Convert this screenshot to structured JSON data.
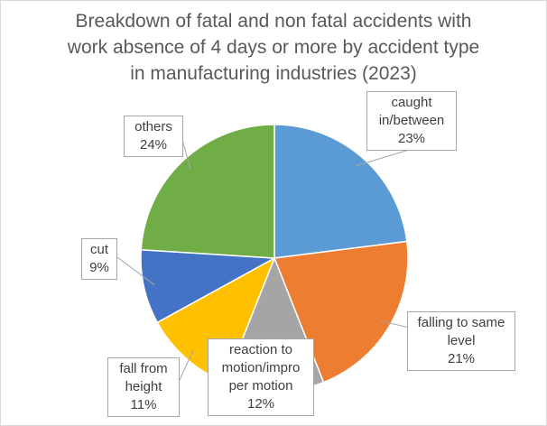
{
  "chart_data": {
    "type": "pie",
    "title_lines": [
      "Breakdown of fatal and non fatal accidents with",
      "work absence of 4 days or more by accident type",
      "in manufacturing industries (2023)"
    ],
    "slices": [
      {
        "label_lines": [
          "caught",
          "in/between"
        ],
        "value": 23,
        "value_label": "23%",
        "color": "#5b9bd5"
      },
      {
        "label_lines": [
          "falling to same",
          "level"
        ],
        "value": 21,
        "value_label": "21%",
        "color": "#ed7d31"
      },
      {
        "label_lines": [
          "reaction to",
          "motion/impro",
          "per motion"
        ],
        "value": 12,
        "value_label": "12%",
        "color": "#a5a5a5"
      },
      {
        "label_lines": [
          "fall from",
          "height"
        ],
        "value": 11,
        "value_label": "11%",
        "color": "#ffc000"
      },
      {
        "label_lines": [
          "cut"
        ],
        "value": 9,
        "value_label": "9%",
        "color": "#4472c4"
      },
      {
        "label_lines": [
          "others"
        ],
        "value": 24,
        "value_label": "24%",
        "color": "#70ad47"
      }
    ],
    "start_angle": "12 o'clock",
    "direction": "clockwise",
    "legend": "none",
    "data_labels": "callouts"
  }
}
